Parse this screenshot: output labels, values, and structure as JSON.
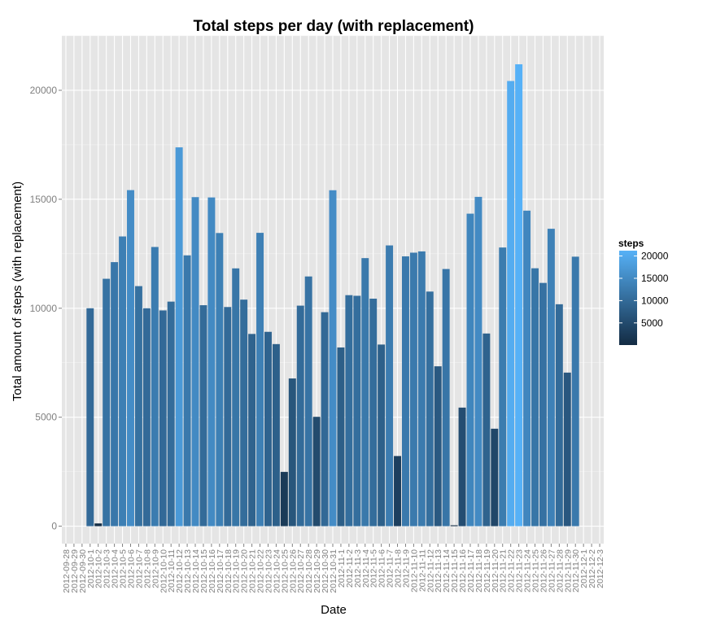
{
  "chart_data": {
    "type": "bar",
    "title": "Total steps per day (with replacement)",
    "xlabel": "Date",
    "ylabel": "Total amount of steps (with replacement)",
    "ylim": [
      -800,
      22500
    ],
    "yticks": [
      0,
      5000,
      10000,
      15000,
      20000
    ],
    "grid": true,
    "categories": [
      "2012-09-28",
      "2012-09-29",
      "2012-09-30",
      "2012-10-1",
      "2012-10-2",
      "2012-10-3",
      "2012-10-4",
      "2012-10-5",
      "2012-10-6",
      "2012-10-7",
      "2012-10-8",
      "2012-10-9",
      "2012-10-10",
      "2012-10-11",
      "2012-10-12",
      "2012-10-13",
      "2012-10-14",
      "2012-10-15",
      "2012-10-16",
      "2012-10-17",
      "2012-10-18",
      "2012-10-19",
      "2012-10-20",
      "2012-10-21",
      "2012-10-22",
      "2012-10-23",
      "2012-10-24",
      "2012-10-25",
      "2012-10-26",
      "2012-10-27",
      "2012-10-28",
      "2012-10-29",
      "2012-10-30",
      "2012-10-31",
      "2012-11-1",
      "2012-11-2",
      "2012-11-3",
      "2012-11-4",
      "2012-11-5",
      "2012-11-6",
      "2012-11-7",
      "2012-11-8",
      "2012-11-9",
      "2012-11-10",
      "2012-11-11",
      "2012-11-12",
      "2012-11-13",
      "2012-11-14",
      "2012-11-15",
      "2012-11-16",
      "2012-11-17",
      "2012-11-18",
      "2012-11-19",
      "2012-11-20",
      "2012-11-21",
      "2012-11-22",
      "2012-11-23",
      "2012-11-24",
      "2012-11-25",
      "2012-11-26",
      "2012-11-27",
      "2012-11-28",
      "2012-11-29",
      "2012-11-30",
      "2012-12-1",
      "2012-12-2",
      "2012-12-3"
    ],
    "bars": [
      {
        "x": "2012-10-1",
        "y": 10000
      },
      {
        "x": "2012-10-2",
        "y": 126
      },
      {
        "x": "2012-10-3",
        "y": 11352
      },
      {
        "x": "2012-10-4",
        "y": 12116
      },
      {
        "x": "2012-10-5",
        "y": 13294
      },
      {
        "x": "2012-10-6",
        "y": 15420
      },
      {
        "x": "2012-10-7",
        "y": 11015
      },
      {
        "x": "2012-10-8",
        "y": 10000
      },
      {
        "x": "2012-10-9",
        "y": 12811
      },
      {
        "x": "2012-10-10",
        "y": 9900
      },
      {
        "x": "2012-10-11",
        "y": 10304
      },
      {
        "x": "2012-10-12",
        "y": 17382
      },
      {
        "x": "2012-10-13",
        "y": 12426
      },
      {
        "x": "2012-10-14",
        "y": 15098
      },
      {
        "x": "2012-10-15",
        "y": 10139
      },
      {
        "x": "2012-10-16",
        "y": 15084
      },
      {
        "x": "2012-10-17",
        "y": 13452
      },
      {
        "x": "2012-10-18",
        "y": 10056
      },
      {
        "x": "2012-10-19",
        "y": 11829
      },
      {
        "x": "2012-10-20",
        "y": 10395
      },
      {
        "x": "2012-10-21",
        "y": 8821
      },
      {
        "x": "2012-10-22",
        "y": 13460
      },
      {
        "x": "2012-10-23",
        "y": 8918
      },
      {
        "x": "2012-10-24",
        "y": 8355
      },
      {
        "x": "2012-10-25",
        "y": 2492
      },
      {
        "x": "2012-10-26",
        "y": 6778
      },
      {
        "x": "2012-10-27",
        "y": 10119
      },
      {
        "x": "2012-10-28",
        "y": 11458
      },
      {
        "x": "2012-10-29",
        "y": 5018
      },
      {
        "x": "2012-10-30",
        "y": 9819
      },
      {
        "x": "2012-10-31",
        "y": 15414
      },
      {
        "x": "2012-11-1",
        "y": 8200
      },
      {
        "x": "2012-11-2",
        "y": 10600
      },
      {
        "x": "2012-11-3",
        "y": 10571
      },
      {
        "x": "2012-11-4",
        "y": 12300
      },
      {
        "x": "2012-11-5",
        "y": 10439
      },
      {
        "x": "2012-11-6",
        "y": 8334
      },
      {
        "x": "2012-11-7",
        "y": 12883
      },
      {
        "x": "2012-11-8",
        "y": 3219
      },
      {
        "x": "2012-11-9",
        "y": 12380
      },
      {
        "x": "2012-11-10",
        "y": 12550
      },
      {
        "x": "2012-11-11",
        "y": 12608
      },
      {
        "x": "2012-11-12",
        "y": 10765
      },
      {
        "x": "2012-11-13",
        "y": 7336
      },
      {
        "x": "2012-11-14",
        "y": 11800
      },
      {
        "x": "2012-11-15",
        "y": 41
      },
      {
        "x": "2012-11-16",
        "y": 5441
      },
      {
        "x": "2012-11-17",
        "y": 14339
      },
      {
        "x": "2012-11-18",
        "y": 15110
      },
      {
        "x": "2012-11-19",
        "y": 8841
      },
      {
        "x": "2012-11-20",
        "y": 4472
      },
      {
        "x": "2012-11-21",
        "y": 12787
      },
      {
        "x": "2012-11-22",
        "y": 20427
      },
      {
        "x": "2012-11-23",
        "y": 21194
      },
      {
        "x": "2012-11-24",
        "y": 14478
      },
      {
        "x": "2012-11-25",
        "y": 11834
      },
      {
        "x": "2012-11-26",
        "y": 11162
      },
      {
        "x": "2012-11-27",
        "y": 13646
      },
      {
        "x": "2012-11-28",
        "y": 10183
      },
      {
        "x": "2012-11-29",
        "y": 7047
      },
      {
        "x": "2012-11-30",
        "y": 12366
      }
    ],
    "legend": {
      "title": "steps",
      "placement": "right",
      "ticks": [
        5000,
        10000,
        15000,
        20000
      ],
      "range": [
        41,
        21194
      ],
      "color_low": "#132B43",
      "color_high": "#56B1F7"
    }
  }
}
